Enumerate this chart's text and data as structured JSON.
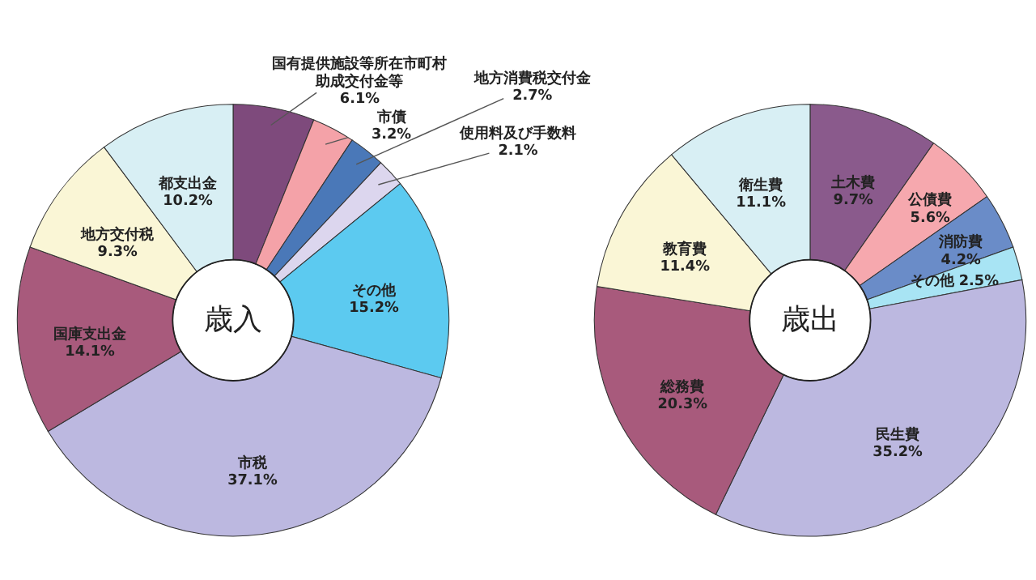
{
  "chart_data": [
    {
      "type": "donut",
      "title": "歳入",
      "categories": [
        "国有提供施設等所在市町村助成交付金等",
        "市債",
        "地方消費税交付金",
        "使用料及び手数料",
        "その他",
        "市税",
        "国庫支出金",
        "地方交付税",
        "都支出金"
      ],
      "values": [
        6.1,
        3.2,
        2.7,
        2.1,
        15.2,
        37.1,
        14.1,
        9.3,
        10.2
      ],
      "value_labels": [
        "6.1%",
        "3.2%",
        "2.7%",
        "2.1%",
        "15.2%",
        "37.1%",
        "14.1%",
        "9.3%",
        "10.2%"
      ],
      "colors": [
        "#7e4a7c",
        "#f4a2a8",
        "#4a78b8",
        "#dcd6ee",
        "#5ccaf0",
        "#bcb8e0",
        "#a85a7c",
        "#faf6d6",
        "#d8eff4"
      ]
    },
    {
      "type": "donut",
      "title": "歳出",
      "categories": [
        "土木費",
        "公債費",
        "消防費",
        "その他",
        "民生費",
        "総務費",
        "教育費",
        "衛生費"
      ],
      "values": [
        9.7,
        5.6,
        4.2,
        2.5,
        35.2,
        20.3,
        11.4,
        11.1
      ],
      "value_labels": [
        "9.7%",
        "5.6%",
        "4.2%",
        "2.5%",
        "35.2%",
        "20.3%",
        "11.4%",
        "11.1%"
      ],
      "colors": [
        "#8a5a8c",
        "#f6a8ae",
        "#6a8cc8",
        "#a8e4f4",
        "#bcb8e0",
        "#a85a7c",
        "#faf6d6",
        "#d8eff4"
      ]
    }
  ]
}
